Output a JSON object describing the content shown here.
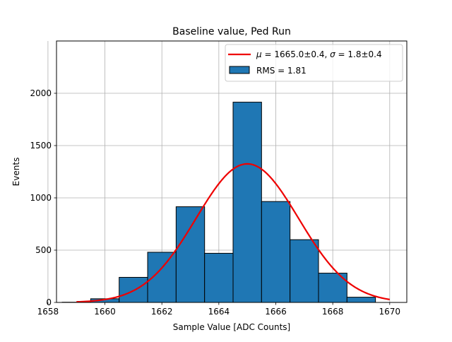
{
  "chart_data": {
    "type": "bar",
    "title": "Baseline value, Ped Run",
    "xlabel": "Sample Value [ADC Counts]",
    "ylabel": "Events",
    "xlim": [
      1658.3,
      1670.6
    ],
    "ylim": [
      0,
      2500
    ],
    "xticks": [
      1658,
      1660,
      1662,
      1664,
      1666,
      1668,
      1670
    ],
    "yticks": [
      0,
      500,
      1000,
      1500,
      2000
    ],
    "grid": true,
    "legend_position": "top-right",
    "bin_width": 1,
    "bin_centers": [
      1659,
      1660,
      1661,
      1662,
      1663,
      1664,
      1665,
      1666,
      1667,
      1668,
      1669
    ],
    "values": [
      2,
      35,
      240,
      480,
      915,
      470,
      1915,
      965,
      600,
      280,
      50
    ],
    "bar_color": "#1f77b4",
    "fit": {
      "name": "$\\mu = 1665.0\\pm0.4$, $\\sigma = 1.8\\pm0.4$",
      "label_mu": "μ",
      "label_mu_rest": " = 1665.0±0.4, ",
      "label_sigma": "σ",
      "label_sigma_rest": " = 1.8±0.4",
      "mu": 1665.0,
      "sigma": 1.8,
      "amplitude": 1325,
      "x_range": [
        1659,
        1670
      ],
      "color": "#ee0000"
    },
    "hist_legend": "RMS = 1.81"
  }
}
